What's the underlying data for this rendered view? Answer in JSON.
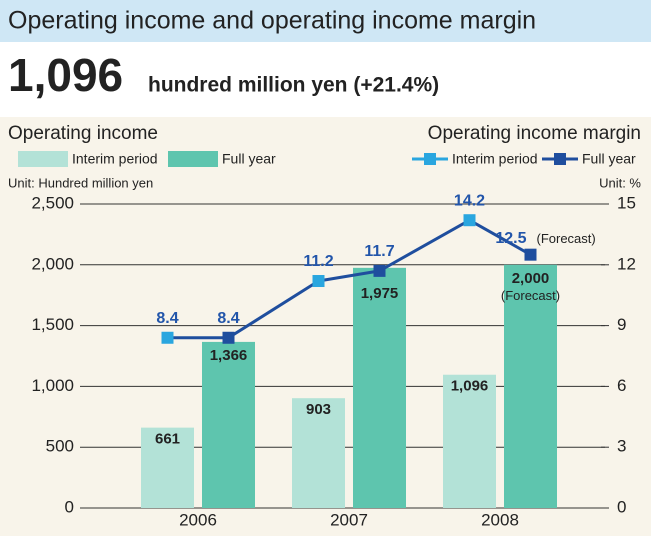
{
  "header": {
    "title": "Operating income and operating income margin",
    "headline_value": "1,096",
    "headline_note": "hundred million yen (+21.4%)"
  },
  "chart_data": {
    "type": "bar",
    "categories": [
      "2006",
      "2007",
      "2008"
    ],
    "y_label": "Operating income",
    "y2_label": "Operating income margin",
    "y_unit": "Unit: Hundred million yen",
    "y2_unit": "Unit: %",
    "series": [
      {
        "name": "Interim period",
        "type": "bar",
        "axis": "y",
        "color": "#b3e2d7",
        "values": [
          661,
          903,
          1096
        ],
        "value_labels": [
          "661",
          "903",
          "1,096"
        ]
      },
      {
        "name": "Full year",
        "type": "bar",
        "axis": "y",
        "color": "#5ec5ae",
        "values": [
          1366,
          1975,
          2000
        ],
        "value_labels": [
          "1,366",
          "1,975",
          "2,000"
        ]
      },
      {
        "name": "Interim period",
        "type": "line",
        "axis": "y2",
        "color": "#2aa6df",
        "values": [
          8.4,
          11.2,
          14.2
        ]
      },
      {
        "name": "Full year",
        "type": "line",
        "axis": "y2",
        "color": "#1f4e9e",
        "values": [
          8.4,
          11.7,
          12.5
        ]
      }
    ],
    "annotations": [
      "(Forecast)",
      "(Forecast)"
    ],
    "ylim": [
      0,
      2500
    ],
    "yticks": [
      0,
      500,
      {
        "value": 1000,
        "label": "1,000"
      },
      {
        "value": 1500,
        "label": "1,500"
      },
      {
        "value": 2000,
        "label": "2,000"
      },
      {
        "value": 2500,
        "label": "2,500"
      }
    ],
    "y2lim": [
      0,
      15
    ],
    "y2ticks": [
      0,
      3,
      6,
      9,
      12,
      15
    ],
    "grid": true
  }
}
